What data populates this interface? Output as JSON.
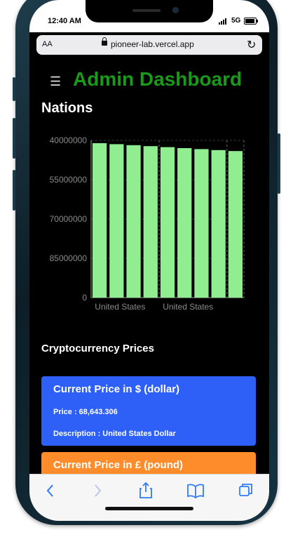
{
  "status": {
    "time": "12:40 AM",
    "network": "5G"
  },
  "browser": {
    "aa_label": "AA",
    "url": "pioneer-lab.vercel.app"
  },
  "app": {
    "title": "Admin Dashboard"
  },
  "chart_section": {
    "heading": "Nations"
  },
  "chart_data": {
    "type": "bar",
    "title": "",
    "xlabel": "",
    "ylabel": "",
    "categories": [
      "",
      "United States",
      "",
      "",
      "",
      "United States",
      "",
      "",
      ""
    ],
    "values": [
      40000000,
      40500000,
      40800000,
      41200000,
      41600000,
      42000000,
      42500000,
      43200000,
      44000000
    ],
    "y_ticks": [
      "40000000",
      "55000000",
      "70000000",
      "85000000",
      "0"
    ],
    "ylim": [
      0,
      40000000
    ],
    "bar_color": "#90ee90"
  },
  "crypto": {
    "heading": "Cryptocurrency Prices",
    "cards": [
      {
        "title": "Current Price in $ (dollar)",
        "price": "Price : 68,643.306",
        "description": "Description : United States Dollar",
        "color": "#2e5ff6"
      },
      {
        "title": "Current Price in £ (pound)",
        "color": "#ff8c2a"
      }
    ]
  }
}
